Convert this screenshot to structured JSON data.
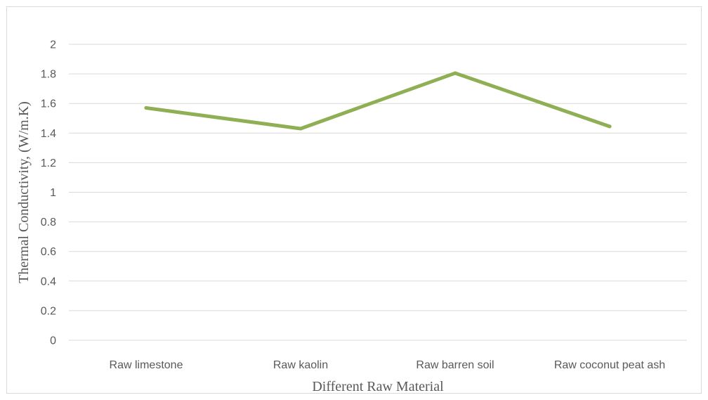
{
  "chart_data": {
    "type": "line",
    "title": "",
    "xlabel": "Different Raw Material",
    "ylabel": "Thermal Conductivity,  (W/m.K)",
    "categories": [
      "Raw limestone",
      "Raw kaolin",
      "Raw barren soil",
      "Raw coconut peat ash"
    ],
    "series": [
      {
        "values": [
          1.57,
          1.43,
          1.805,
          1.445
        ],
        "color": "#8faf55"
      }
    ],
    "ylim": [
      0,
      2
    ],
    "yticks": [
      "0",
      "0.2",
      "0.4",
      "0.6",
      "0.8",
      "1",
      "1.2",
      "1.4",
      "1.6",
      "1.8",
      "2"
    ],
    "grid": true,
    "legend": "none"
  }
}
